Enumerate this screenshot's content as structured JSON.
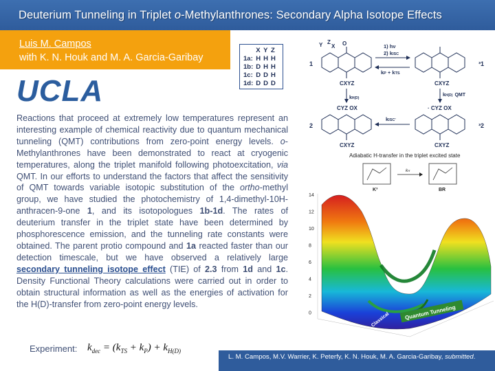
{
  "title": {
    "pre": "Deuterium Tunneling in Triplet ",
    "italic": "o",
    "post": "-Methylanthrones: Secondary Alpha Isotope Effects"
  },
  "authors": {
    "line1": "Luis M. Campos",
    "line2": "with K. N. Houk and M. A. Garcia-Garibay"
  },
  "logo": "UCLA",
  "abstract": {
    "p1": "Reactions that proceed at extremely low temperatures represent an interesting example of chemical reactivity due to quantum mechanical tunneling (QMT) contributions from zero-point energy levels. ",
    "p1_italic": "o",
    "p2": "-Methylanthrones have been demonstrated to react at cryogenic temperatures, along the triplet manifold following photoexcitation, ",
    "via": "via",
    "p3": " QMT. In our efforts to understand the factors that affect the sensitivity of QMT towards variable isotopic substitution of the ",
    "ortho": "ortho",
    "p4": "-methyl group, we have studied the photochemistry of 1,4-dimethyl-10H-anthracen-9-one ",
    "c1": "1",
    "p5": ", and its isotopologues ",
    "c1bd": "1b-1d",
    "p6": ". The rates of deuterium transfer in the triplet state have been determined by phosphorescence emission, and the tunneling rate constants were obtained. The parent protio compound and ",
    "c1a": "1a",
    "p7": " reacted faster than our detection timescale, but we have observed a relatively large ",
    "highlight": "secondary tunneling isotope effect",
    "p8": " (TIE) of ",
    "tie": "2.3",
    "p9": " from ",
    "c1d": "1d",
    "p10": " and ",
    "c1c": "1c",
    "p11": ". Density Functional Theory calculations were carried out in order to obtain structural information as well as the energies of activation for the H(D)-transfer from zero-point energy levels."
  },
  "experiment_label": "Experiment:",
  "equation": {
    "lhs": "k",
    "lhs_sub": "dec",
    "mid": " = (k",
    "ts_sub": "TS",
    "plus": " + k",
    "p_sub": "P",
    "close": ") + k",
    "h_sub": "H(D)"
  },
  "citation": {
    "text": "L. M. Campos, M.V. Warrier, K. Peterfy, K. N. Houk, M. A. Garcia-Garibay, ",
    "italic": "submitted",
    "end": "."
  },
  "isotope_table": {
    "header": [
      "",
      "X",
      "Y",
      "Z"
    ],
    "rows": [
      [
        "1a:",
        "H",
        "H",
        "H"
      ],
      [
        "1b:",
        "D",
        "H",
        "H"
      ],
      [
        "1c:",
        "D",
        "D",
        "H"
      ],
      [
        "1d:",
        "D",
        "D",
        "D"
      ]
    ]
  },
  "scheme": {
    "step1": "1) hν",
    "step2": "2) k",
    "step2_sub": "ISC",
    "kp": "k",
    "kp_sub": "P",
    "kts": " + k",
    "kts_sub": "TS",
    "kh": "k",
    "kh_sub": "H(D)",
    "qmt": "QMT",
    "kisc2": "k",
    "kisc2_sub": "ISC'",
    "label1": "1",
    "label31": "³1",
    "label2": "2",
    "label32": "³2",
    "cxyz": "CXYZ",
    "cyzox": "CYZ OX",
    "cyzox2": "· CYZ OX",
    "y": "Y",
    "z": "Z",
    "x": "X",
    "o": "O"
  },
  "surface": {
    "title": "Adiabatic H-transfer in the triplet excited state",
    "k3": "K³",
    "br": "BR",
    "kh": "k",
    "kh_sub": "H",
    "tunneling_label": "Quantum Tunneling",
    "classical_label": "Classical",
    "y_ticks": [
      "14",
      "12",
      "10",
      "8",
      "6",
      "4",
      "2",
      "0"
    ]
  }
}
